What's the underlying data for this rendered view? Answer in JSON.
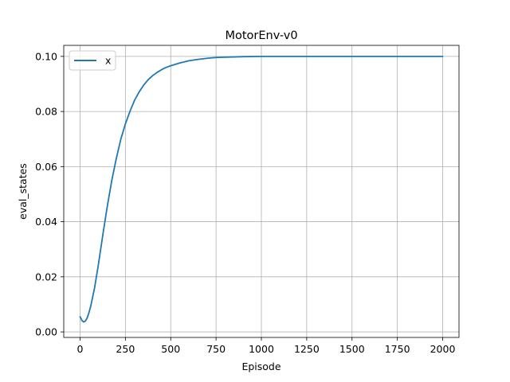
{
  "chart_data": {
    "type": "line",
    "title": "MotorEnv-v0",
    "xlabel": "Episode",
    "ylabel": "eval_states",
    "xlim": [
      -90,
      2090
    ],
    "ylim": [
      -0.002,
      0.104
    ],
    "xticks": [
      0,
      250,
      500,
      750,
      1000,
      1250,
      1500,
      1750,
      2000
    ],
    "yticks": [
      0.0,
      0.02,
      0.04,
      0.06,
      0.08,
      0.1
    ],
    "xtick_labels": [
      "0",
      "250",
      "500",
      "750",
      "1000",
      "1250",
      "1500",
      "1750",
      "2000"
    ],
    "ytick_labels": [
      "0.00",
      "0.02",
      "0.04",
      "0.06",
      "0.08",
      "0.10"
    ],
    "grid": true,
    "legend_position": "top-left",
    "series": [
      {
        "name": "x",
        "color": "#1f77b4",
        "x": [
          0,
          10,
          20,
          30,
          40,
          50,
          60,
          80,
          100,
          125,
          150,
          175,
          200,
          225,
          250,
          275,
          300,
          325,
          350,
          375,
          400,
          425,
          450,
          475,
          500,
          550,
          600,
          650,
          700,
          750,
          800,
          900,
          1000,
          1100,
          1250,
          1500,
          1750,
          2000
        ],
        "y": [
          0.0055,
          0.0042,
          0.0036,
          0.004,
          0.0052,
          0.0072,
          0.0097,
          0.016,
          0.024,
          0.035,
          0.0455,
          0.055,
          0.063,
          0.07,
          0.0755,
          0.08,
          0.084,
          0.087,
          0.0895,
          0.0915,
          0.093,
          0.0942,
          0.0952,
          0.096,
          0.0966,
          0.0976,
          0.0984,
          0.0989,
          0.0993,
          0.0996,
          0.0997,
          0.0999,
          0.1,
          0.1,
          0.1,
          0.1,
          0.1,
          0.1
        ]
      }
    ]
  }
}
